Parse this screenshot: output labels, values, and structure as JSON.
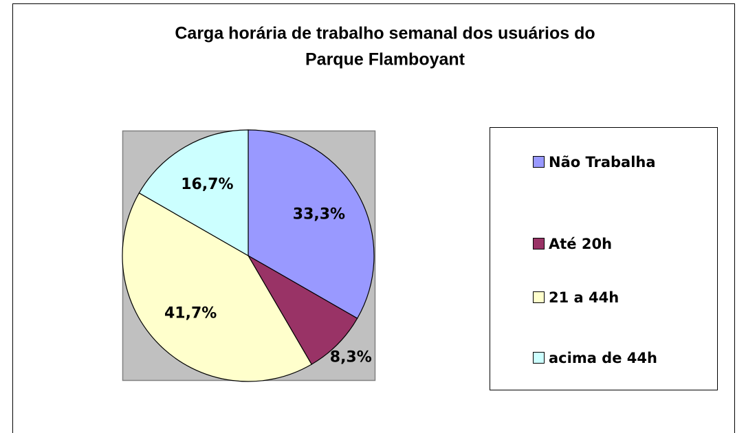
{
  "chart_data": {
    "type": "pie",
    "title": [
      "Carga horária de trabalho semanal dos usuários do",
      "Parque Flamboyant"
    ],
    "categories": [
      "Não Trabalha",
      "Até 20h",
      "21 a 44h",
      "acima de 44h"
    ],
    "values": [
      33.3,
      8.3,
      41.7,
      16.7
    ],
    "value_labels": [
      "33,3%",
      "8,3%",
      "41,7%",
      "16,7%"
    ],
    "colors": [
      "#9999ff",
      "#993366",
      "#ffffcc",
      "#ccffff"
    ],
    "legend": "right"
  }
}
